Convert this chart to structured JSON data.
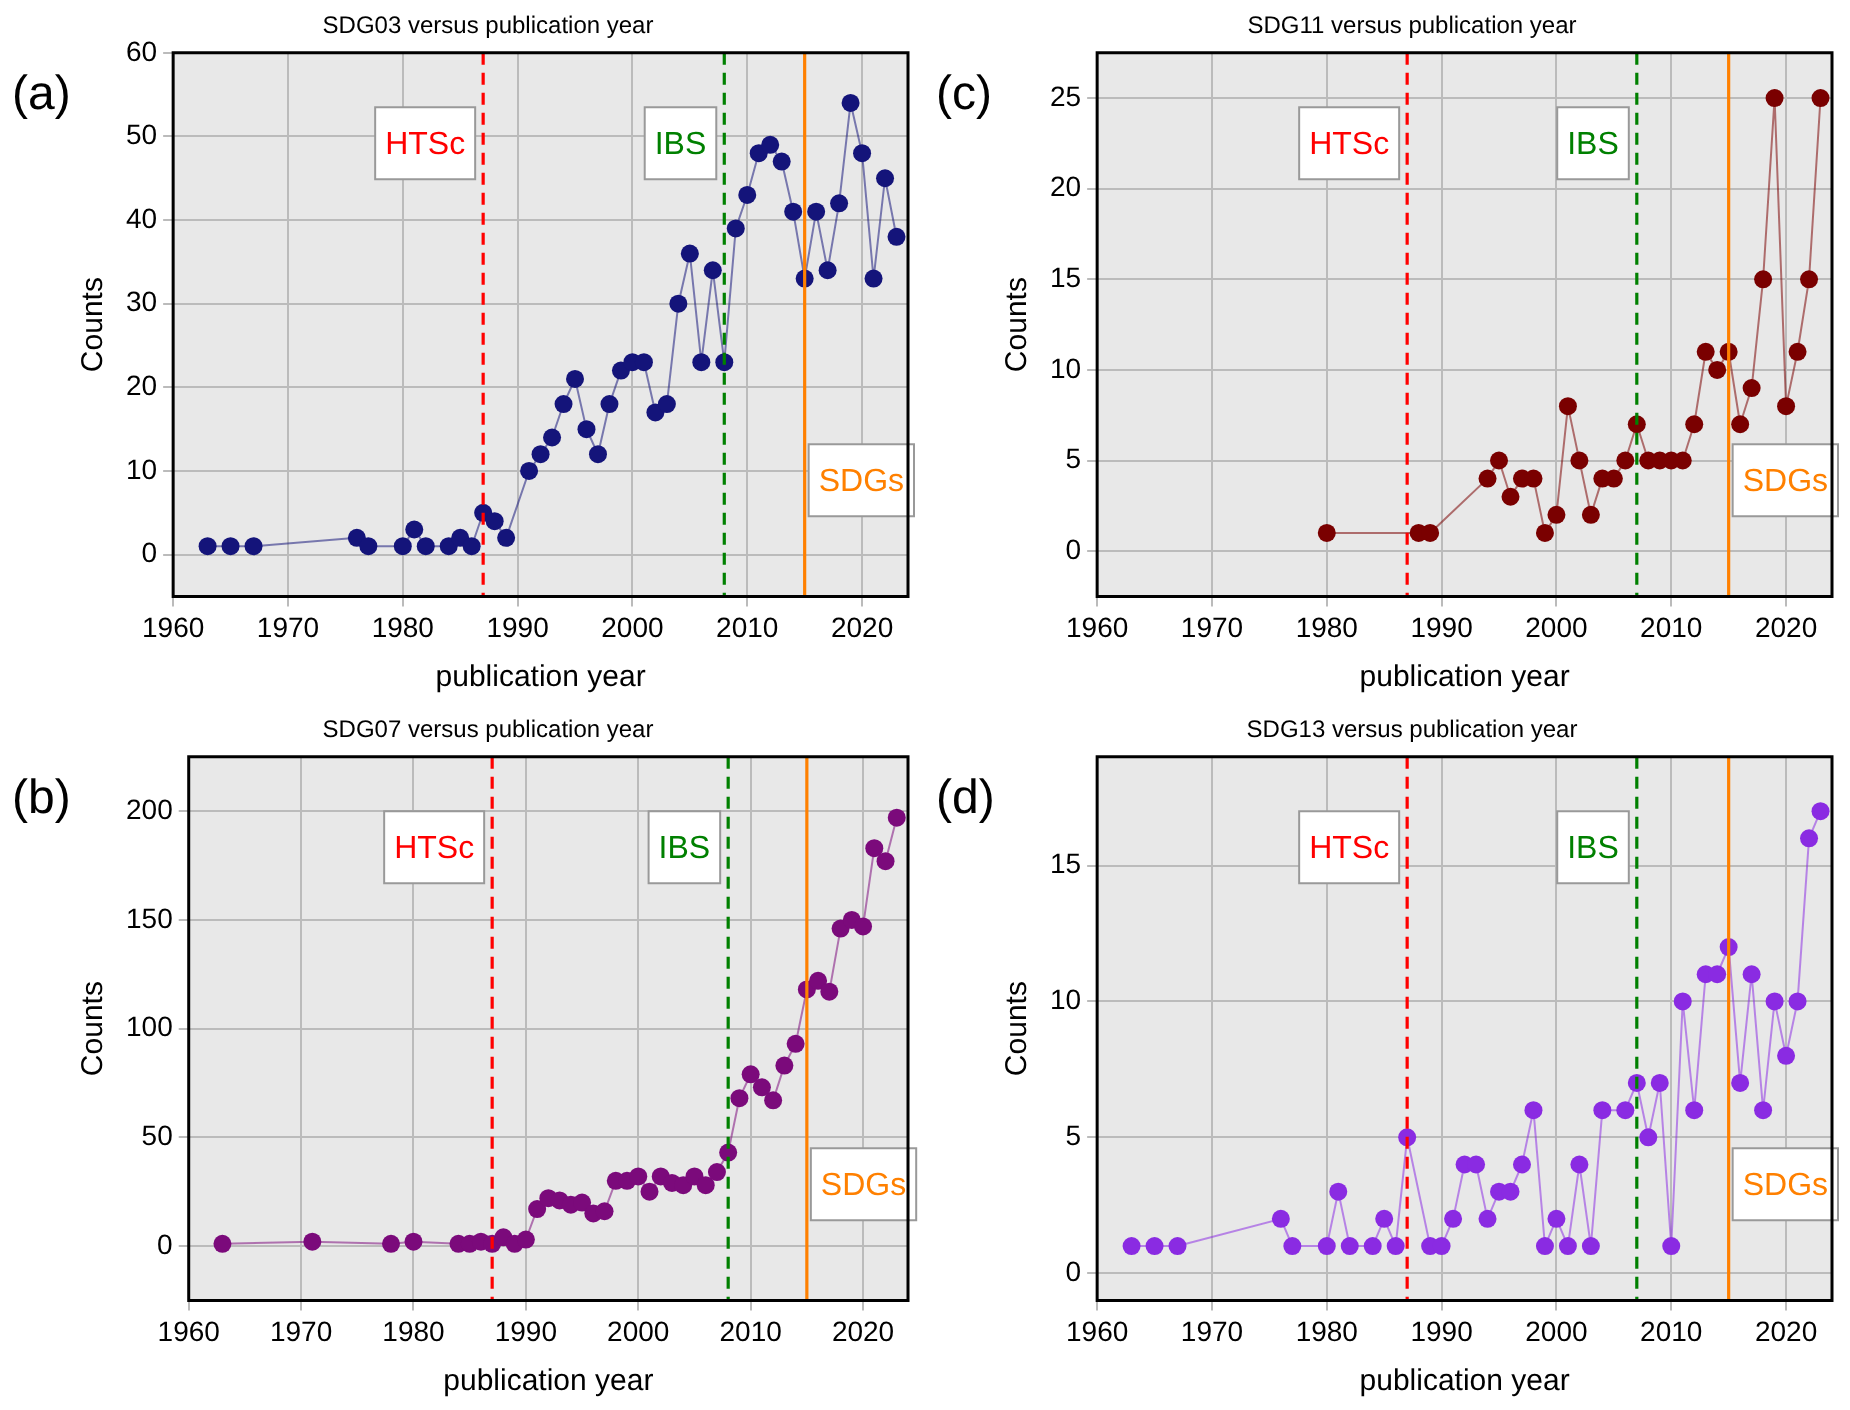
{
  "chart_data": [
    {
      "type": "line",
      "title": "SDG03 versus publication year",
      "xlabel": "publication year",
      "ylabel": "Counts",
      "annotations": [
        "(a)"
      ],
      "marker": "circle",
      "grid": true,
      "legend": false,
      "xlim": [
        1960,
        2024
      ],
      "xticks": [
        1960,
        1970,
        1980,
        1990,
        2000,
        2010,
        2020
      ],
      "ylim": [
        -5,
        60
      ],
      "yticks": [
        0,
        10,
        20,
        30,
        40,
        50,
        60
      ],
      "x": [
        1963,
        1965,
        1967,
        1976,
        1977,
        1980,
        1981,
        1982,
        1984,
        1985,
        1986,
        1987,
        1988,
        1989,
        1991,
        1992,
        1993,
        1994,
        1995,
        1996,
        1997,
        1998,
        1999,
        2000,
        2001,
        2002,
        2003,
        2004,
        2005,
        2006,
        2007,
        2008,
        2009,
        2010,
        2011,
        2012,
        2013,
        2014,
        2015,
        2016,
        2017,
        2018,
        2019,
        2020,
        2021,
        2022,
        2023
      ],
      "series": [
        {
          "color": "#14147a",
          "values": [
            1,
            1,
            1,
            2,
            1,
            1,
            3,
            1,
            1,
            2,
            1,
            5,
            4,
            2,
            10,
            12,
            14,
            18,
            21,
            15,
            12,
            18,
            22,
            23,
            23,
            17,
            18,
            30,
            36,
            23,
            34,
            23,
            39,
            43,
            48,
            49,
            47,
            41,
            33,
            41,
            34,
            42,
            54,
            48,
            33,
            45,
            38
          ]
        }
      ],
      "ref_lines": [
        {
          "axis": "x",
          "value": 1987,
          "label": "HTSc",
          "color": "#ff0000",
          "line_style": "dashed"
        },
        {
          "axis": "x",
          "value": 2008,
          "label": "IBS",
          "color": "#008000",
          "line_style": "dashed"
        },
        {
          "axis": "x",
          "value": 2015,
          "label": "SDGs",
          "color": "#ff8000",
          "line_style": "solid"
        }
      ]
    },
    {
      "type": "line",
      "title": "SDG11 versus publication year",
      "xlabel": "publication year",
      "ylabel": "Counts",
      "annotations": [
        "(c)"
      ],
      "marker": "circle",
      "grid": true,
      "legend": false,
      "xlim": [
        1960,
        2024
      ],
      "xticks": [
        1960,
        1970,
        1980,
        1990,
        2000,
        2010,
        2020
      ],
      "ylim": [
        -2.5,
        27.5
      ],
      "yticks": [
        0,
        5,
        10,
        15,
        20,
        25
      ],
      "x": [
        1980,
        1988,
        1989,
        1994,
        1995,
        1996,
        1997,
        1998,
        1999,
        2000,
        2001,
        2002,
        2003,
        2004,
        2005,
        2006,
        2007,
        2008,
        2009,
        2010,
        2011,
        2012,
        2013,
        2014,
        2015,
        2016,
        2017,
        2018,
        2019,
        2020,
        2021,
        2022,
        2023
      ],
      "series": [
        {
          "color": "#7a0000",
          "values": [
            1,
            1,
            1,
            4,
            5,
            3,
            4,
            4,
            1,
            2,
            8,
            5,
            2,
            4,
            4,
            5,
            7,
            5,
            5,
            5,
            5,
            7,
            11,
            10,
            11,
            7,
            9,
            15,
            25,
            8,
            11,
            15,
            25
          ]
        }
      ],
      "ref_lines": [
        {
          "axis": "x",
          "value": 1987,
          "label": "HTSc",
          "color": "#ff0000",
          "line_style": "dashed"
        },
        {
          "axis": "x",
          "value": 2007,
          "label": "IBS",
          "color": "#008000",
          "line_style": "dashed"
        },
        {
          "axis": "x",
          "value": 2015,
          "label": "SDGs",
          "color": "#ff8000",
          "line_style": "solid"
        }
      ]
    },
    {
      "type": "line",
      "title": "SDG07 versus publication year",
      "xlabel": "publication year",
      "ylabel": "Counts",
      "annotations": [
        "(b)"
      ],
      "marker": "circle",
      "grid": true,
      "legend": false,
      "xlim": [
        1960,
        2024
      ],
      "xticks": [
        1960,
        1970,
        1980,
        1990,
        2000,
        2010,
        2020
      ],
      "ylim": [
        -25,
        225
      ],
      "yticks": [
        0,
        50,
        100,
        150,
        200
      ],
      "x": [
        1963,
        1971,
        1978,
        1980,
        1984,
        1985,
        1986,
        1987,
        1988,
        1989,
        1990,
        1991,
        1992,
        1993,
        1994,
        1995,
        1996,
        1997,
        1998,
        1999,
        2000,
        2001,
        2002,
        2003,
        2004,
        2005,
        2006,
        2007,
        2008,
        2009,
        2010,
        2011,
        2012,
        2013,
        2014,
        2015,
        2016,
        2017,
        2018,
        2019,
        2020,
        2021,
        2022,
        2023
      ],
      "series": [
        {
          "color": "#7b0a7b",
          "values": [
            1,
            2,
            1,
            2,
            1,
            1,
            2,
            1,
            4,
            1,
            3,
            17,
            22,
            21,
            19,
            20,
            15,
            16,
            30,
            30,
            32,
            25,
            32,
            29,
            28,
            32,
            28,
            34,
            43,
            68,
            79,
            73,
            67,
            83,
            93,
            118,
            122,
            117,
            146,
            150,
            147,
            183,
            177,
            197
          ]
        }
      ],
      "ref_lines": [
        {
          "axis": "x",
          "value": 1987,
          "label": "HTSc",
          "color": "#ff0000",
          "line_style": "dashed"
        },
        {
          "axis": "x",
          "value": 2008,
          "label": "IBS",
          "color": "#008000",
          "line_style": "dashed"
        },
        {
          "axis": "x",
          "value": 2015,
          "label": "SDGs",
          "color": "#ff8000",
          "line_style": "solid"
        }
      ]
    },
    {
      "type": "line",
      "title": "SDG13 versus publication year",
      "xlabel": "publication year",
      "ylabel": "Counts",
      "annotations": [
        "(d)"
      ],
      "marker": "circle",
      "grid": true,
      "legend": false,
      "xlim": [
        1960,
        2024
      ],
      "xticks": [
        1960,
        1970,
        1980,
        1990,
        2000,
        2010,
        2020
      ],
      "ylim": [
        -1,
        19
      ],
      "yticks": [
        0,
        5,
        10,
        15
      ],
      "x": [
        1963,
        1965,
        1967,
        1976,
        1977,
        1980,
        1981,
        1982,
        1984,
        1985,
        1986,
        1987,
        1989,
        1990,
        1991,
        1992,
        1993,
        1994,
        1995,
        1996,
        1997,
        1998,
        1999,
        2000,
        2001,
        2002,
        2003,
        2004,
        2006,
        2007,
        2008,
        2009,
        2010,
        2011,
        2012,
        2013,
        2014,
        2015,
        2016,
        2017,
        2018,
        2019,
        2020,
        2021,
        2022,
        2023
      ],
      "series": [
        {
          "color": "#8a2be2",
          "values": [
            1,
            1,
            1,
            2,
            1,
            1,
            3,
            1,
            1,
            2,
            1,
            5,
            1,
            1,
            2,
            4,
            4,
            2,
            3,
            3,
            4,
            6,
            1,
            2,
            1,
            4,
            1,
            6,
            6,
            7,
            5,
            7,
            1,
            10,
            6,
            11,
            11,
            12,
            7,
            11,
            6,
            10,
            8,
            10,
            16,
            17
          ]
        }
      ],
      "ref_lines": [
        {
          "axis": "x",
          "value": 1987,
          "label": "HTSc",
          "color": "#ff0000",
          "line_style": "dashed"
        },
        {
          "axis": "x",
          "value": 2007,
          "label": "IBS",
          "color": "#008000",
          "line_style": "dashed"
        },
        {
          "axis": "x",
          "value": 2015,
          "label": "SDGs",
          "color": "#ff8000",
          "line_style": "solid"
        }
      ]
    }
  ]
}
